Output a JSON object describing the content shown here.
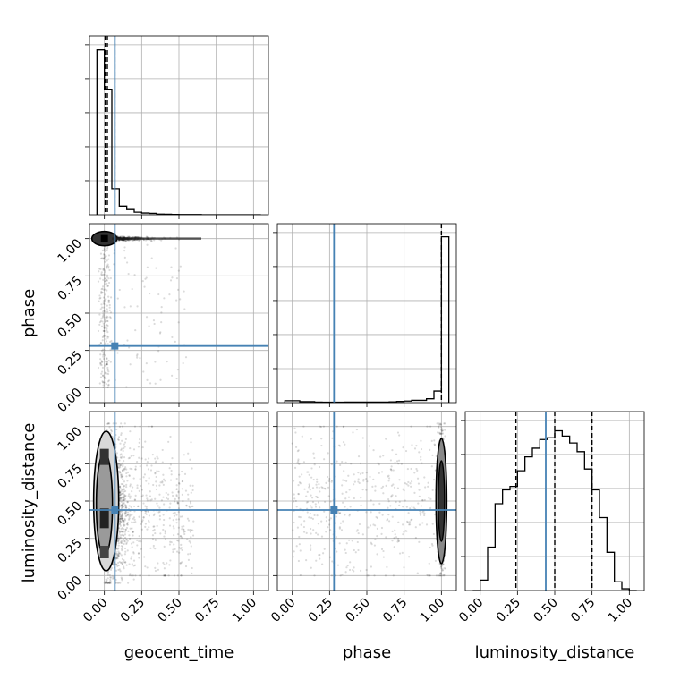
{
  "chart_data": {
    "type": "corner",
    "parameters": [
      "geocent_time",
      "phase",
      "luminosity_distance"
    ],
    "axis_labels": {
      "geocent_time": "geocent_time",
      "phase": "phase",
      "luminosity_distance": "luminosity_distance"
    },
    "range": [
      -0.1,
      1.1
    ],
    "ticks": [
      0.0,
      0.25,
      0.5,
      0.75,
      1.0
    ],
    "tick_labels": [
      "0.00",
      "0.25",
      "0.50",
      "0.75",
      "1.00"
    ],
    "grid": true,
    "truths": {
      "geocent_time": 0.07,
      "phase": 0.28,
      "luminosity_distance": 0.44
    },
    "truth_color": "#4682b4",
    "hist_color": "#000000",
    "bin_width": 0.05,
    "histograms": {
      "geocent_time": {
        "bin_start": -0.05,
        "counts": [
          0.95,
          0.72,
          0.15,
          0.05,
          0.03,
          0.015,
          0.01,
          0.008,
          0.004,
          0.003,
          0.002,
          0.001,
          0.001,
          0.001,
          0,
          0,
          0,
          0,
          0,
          0,
          0,
          0
        ],
        "ymax": 1.0,
        "quantiles": [
          0.005,
          0.02,
          0.07
        ]
      },
      "phase": {
        "bin_start": -0.05,
        "counts": [
          0.01,
          0.01,
          0.005,
          0.005,
          0.003,
          0.002,
          0.002,
          0.002,
          0.003,
          0.003,
          0.003,
          0.003,
          0.003,
          0.003,
          0.004,
          0.006,
          0.008,
          0.012,
          0.012,
          0.02,
          0.06,
          0.86
        ],
        "ymax": 0.9,
        "quantiles": [
          1.0
        ]
      },
      "luminosity_distance": {
        "bin_start": -0.05,
        "counts": [
          0.0,
          0.06,
          0.25,
          0.5,
          0.58,
          0.6,
          0.69,
          0.77,
          0.82,
          0.87,
          0.88,
          0.92,
          0.89,
          0.85,
          0.8,
          0.7,
          0.58,
          0.42,
          0.22,
          0.05,
          0.01,
          0.0
        ],
        "ymax": 1.0,
        "quantiles": [
          0.24,
          0.5,
          0.75
        ]
      }
    },
    "scatter_2d": {
      "phase_vs_geocent_time": {
        "dense_core": {
          "x": 0.0,
          "y": 1.0
        },
        "density_ridge": {
          "x_from": 0.0,
          "x_to": 0.65,
          "y": 1.0
        }
      },
      "luminosity_distance_vs_geocent_time": {
        "dense_core": {
          "x": 0.0,
          "y": 0.45
        }
      },
      "luminosity_distance_vs_phase": {
        "dense_core": {
          "x": 1.0,
          "y": 0.5
        }
      }
    }
  }
}
